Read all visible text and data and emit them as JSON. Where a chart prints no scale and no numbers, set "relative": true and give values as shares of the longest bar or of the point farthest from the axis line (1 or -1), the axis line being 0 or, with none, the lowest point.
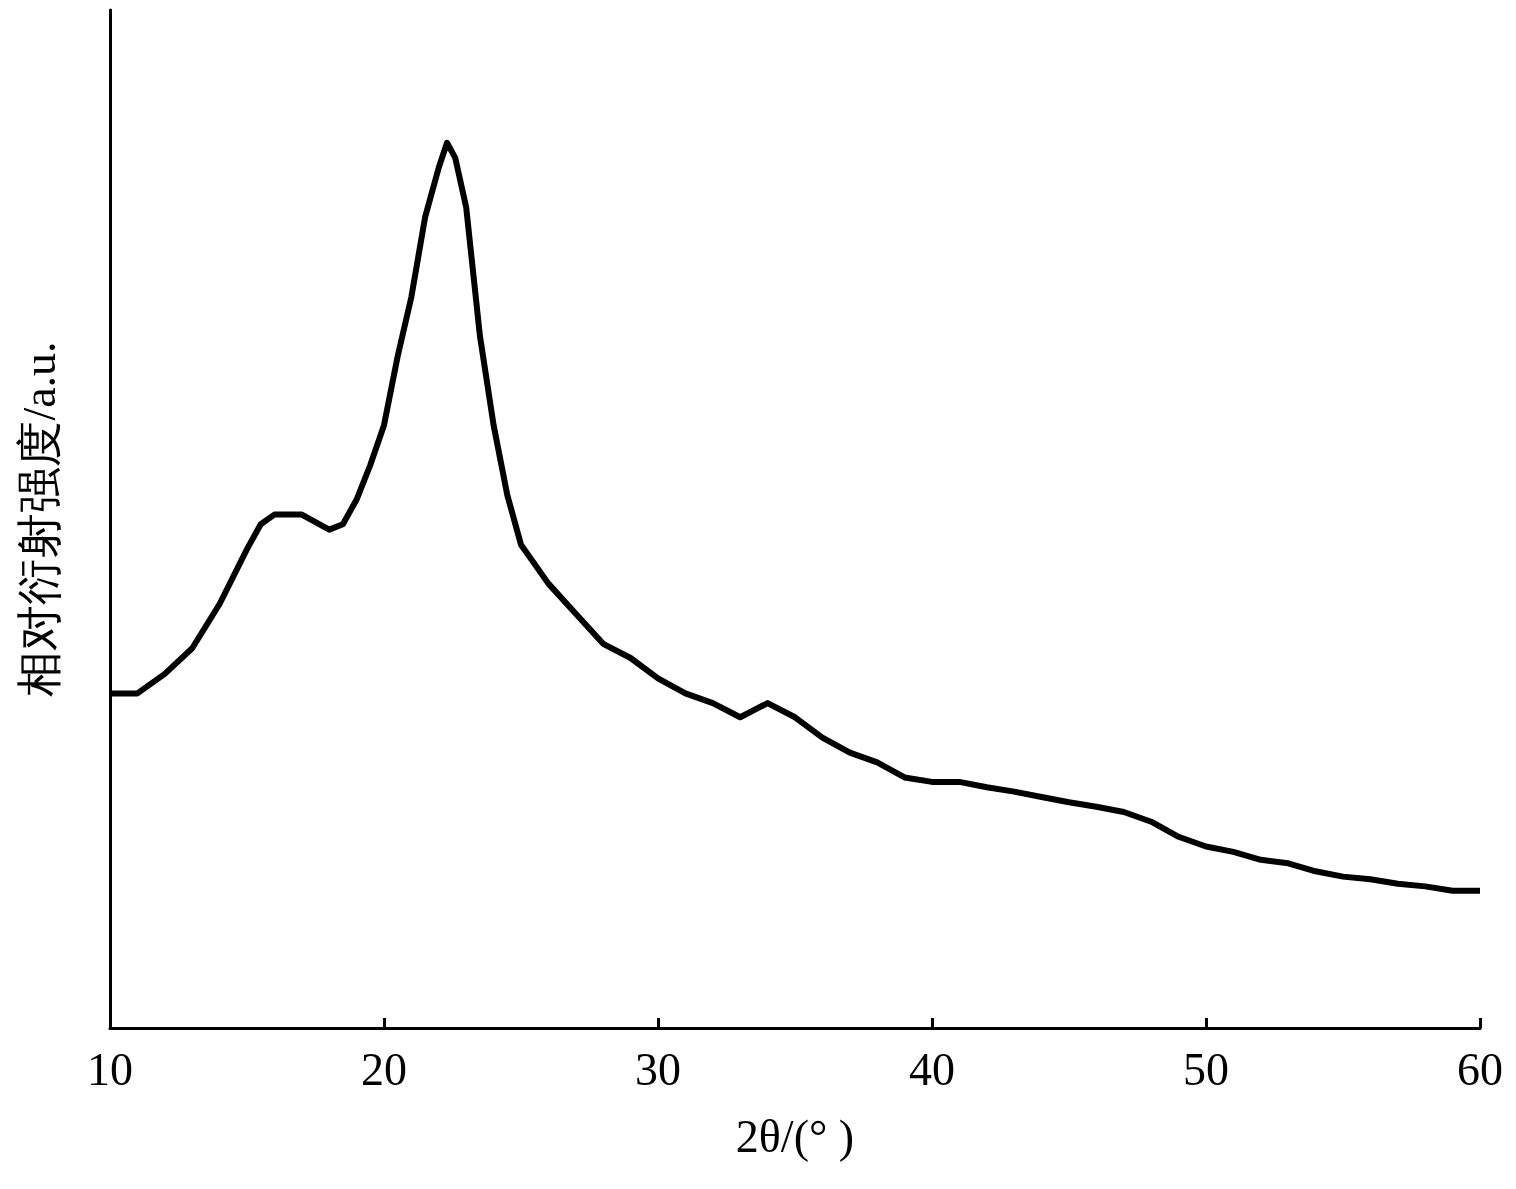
{
  "chart_data": {
    "type": "line",
    "xlabel": "2θ/(° )",
    "ylabel": "相对衍射强度/a.u.",
    "relative": true,
    "xlim": [
      10,
      60
    ],
    "xticks": [
      10,
      20,
      30,
      40,
      50,
      60
    ],
    "grid": false,
    "marker": "none",
    "line_style": "solid",
    "x": [
      10,
      11,
      12,
      13,
      14,
      15,
      15.5,
      16,
      17,
      18,
      18.5,
      19,
      19.5,
      20,
      20.5,
      21,
      21.5,
      22,
      22.3,
      22.6,
      23,
      23.5,
      24,
      24.5,
      25,
      25.5,
      26,
      27,
      28,
      29,
      30,
      31,
      32,
      33,
      34,
      35,
      36,
      37,
      38,
      39,
      40,
      41,
      42,
      43,
      44,
      45,
      46,
      47,
      48,
      49,
      50,
      51,
      52,
      53,
      54,
      55,
      56,
      57,
      58,
      59,
      60
    ],
    "series": [
      {
        "color": "#000000",
        "values": [
          0.378,
          0.378,
          0.4,
          0.429,
          0.479,
          0.541,
          0.569,
          0.58,
          0.58,
          0.563,
          0.569,
          0.597,
          0.636,
          0.681,
          0.759,
          0.826,
          0.916,
          0.972,
          1,
          0.983,
          0.927,
          0.782,
          0.681,
          0.602,
          0.546,
          0.524,
          0.502,
          0.468,
          0.434,
          0.418,
          0.395,
          0.378,
          0.367,
          0.351,
          0.367,
          0.351,
          0.328,
          0.311,
          0.3,
          0.283,
          0.278,
          0.278,
          0.272,
          0.267,
          0.261,
          0.255,
          0.25,
          0.244,
          0.233,
          0.216,
          0.205,
          0.199,
          0.19,
          0.186,
          0.177,
          0.171,
          0.168,
          0.163,
          0.16,
          0.155,
          0.155
        ]
      }
    ]
  }
}
